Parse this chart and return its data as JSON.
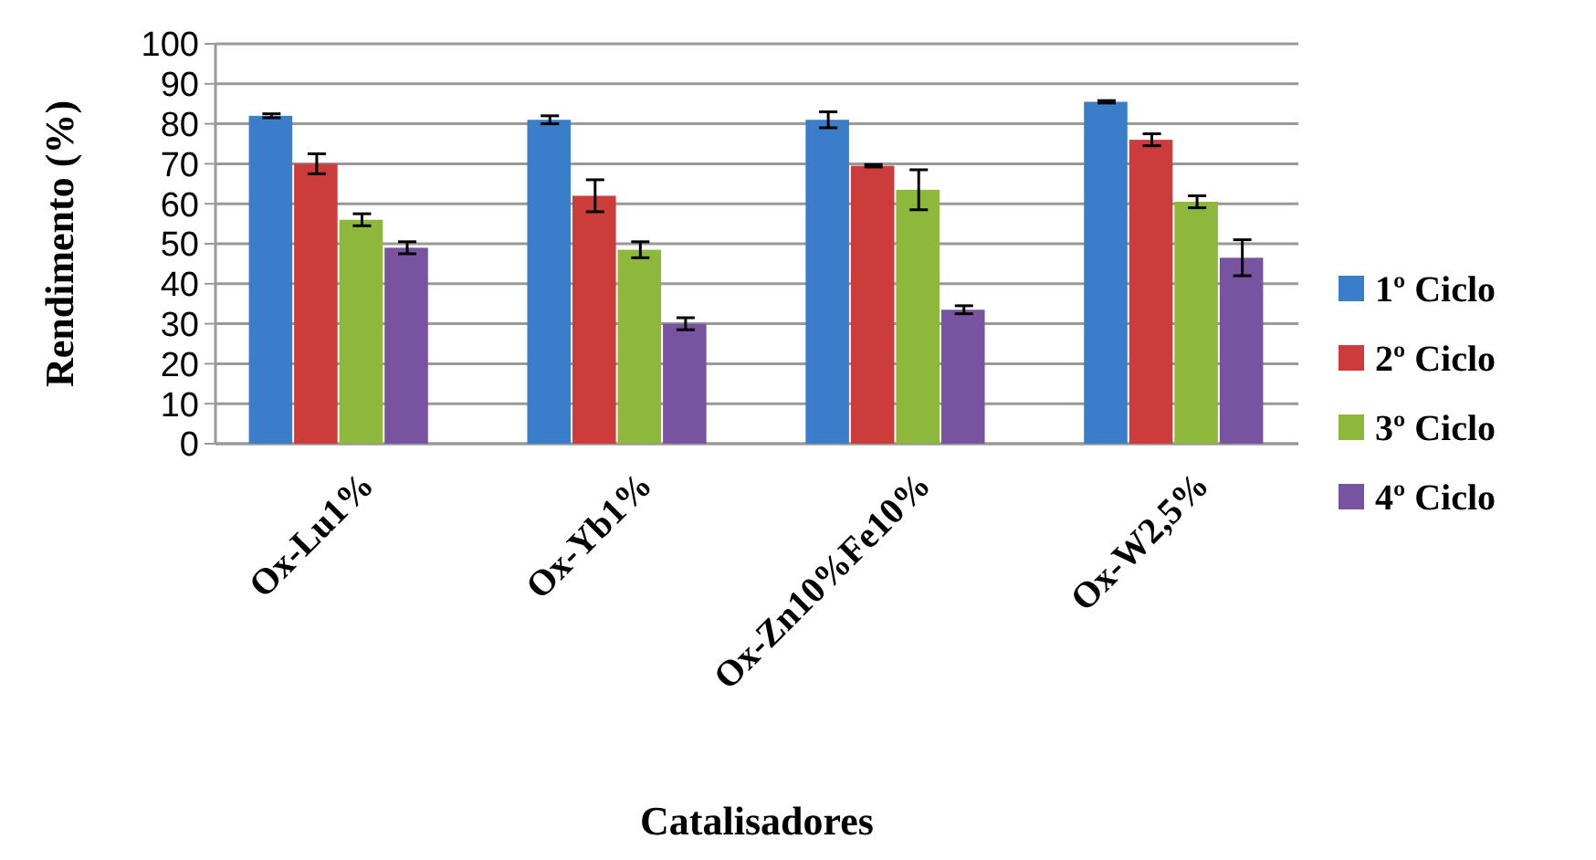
{
  "chart_data": {
    "type": "bar",
    "xlabel": "Catalisadores",
    "ylabel": "Rendimento (%)",
    "categories": [
      "Ox-Lu1%",
      "Ox-Yb1%",
      "Ox-Zn10%Fe10%",
      "Ox-W2,5%"
    ],
    "series": [
      {
        "name": "1º Ciclo",
        "color": "#3a7dc9",
        "values": [
          82,
          81,
          81,
          85.5
        ],
        "errors": [
          0.5,
          1,
          2,
          0.3
        ]
      },
      {
        "name": "2º Ciclo",
        "color": "#cc3c3a",
        "values": [
          70,
          62,
          69.5,
          76
        ],
        "errors": [
          2.5,
          4,
          0.3,
          1.5
        ]
      },
      {
        "name": "3º Ciclo",
        "color": "#8db83c",
        "values": [
          56,
          48.5,
          63.5,
          60.5
        ],
        "errors": [
          1.5,
          2,
          5,
          1.5
        ]
      },
      {
        "name": "4º Ciclo",
        "color": "#7853a0",
        "values": [
          49,
          30,
          33.5,
          46.5
        ],
        "errors": [
          1.5,
          1.5,
          1,
          4.5
        ]
      }
    ],
    "ylim": [
      0,
      100
    ],
    "yticks": [
      0,
      10,
      20,
      30,
      40,
      50,
      60,
      70,
      80,
      90,
      100
    ],
    "grid": "y",
    "legend": "right"
  }
}
